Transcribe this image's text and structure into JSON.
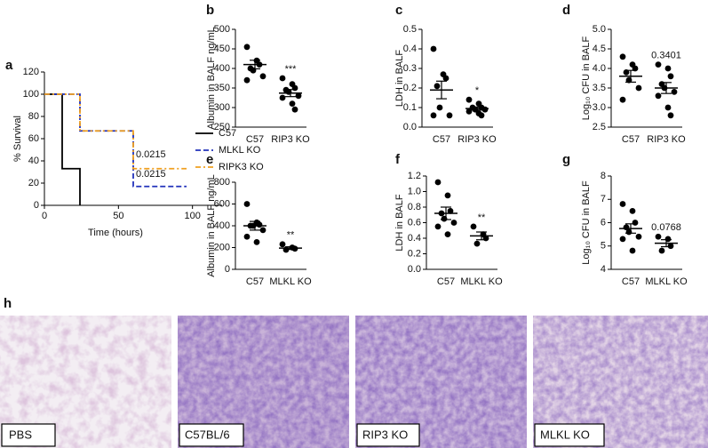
{
  "chart_data": [
    {
      "type": "survival",
      "label": "a",
      "xlabel": "Time (hours)",
      "ylabel": "% Survival",
      "xlim": [
        0,
        120
      ],
      "xticks": [
        0,
        50,
        100
      ],
      "ylim": [
        0,
        120
      ],
      "yticks": [
        0,
        20,
        40,
        60,
        80,
        100,
        120
      ],
      "legend": "right",
      "annotations": [
        "0.0215",
        "0.0215"
      ],
      "series": [
        {
          "name": "C57",
          "color": "#000000",
          "dash": "solid",
          "x": [
            0,
            12,
            12,
            24,
            24
          ],
          "y": [
            100,
            100,
            33,
            33,
            0
          ]
        },
        {
          "name": "MLKL KO",
          "color": "#2233bb",
          "dash": "dashed",
          "x": [
            0,
            24,
            24,
            60,
            60,
            96
          ],
          "y": [
            100,
            100,
            67,
            67,
            17,
            17
          ]
        },
        {
          "name": "RIPK3 KO",
          "color": "#f0a020",
          "dash": "dashdot",
          "x": [
            0,
            24,
            24,
            60,
            60,
            96
          ],
          "y": [
            100,
            100,
            67,
            67,
            33,
            33
          ]
        }
      ]
    },
    {
      "type": "dot",
      "label": "b",
      "ylabel": "Albumin in BALF ng/mL",
      "ylim": [
        250,
        500
      ],
      "yticks": [
        250,
        300,
        350,
        400,
        450,
        500
      ],
      "categories": [
        "C57",
        "RIP3 KO"
      ],
      "annotation": "***",
      "points": [
        [
          455,
          420,
          410,
          400,
          395,
          380,
          370
        ],
        [
          375,
          360,
          350,
          345,
          340,
          330,
          325,
          310,
          295
        ]
      ],
      "means": [
        410,
        337
      ],
      "sems": [
        11,
        9
      ]
    },
    {
      "type": "dot",
      "label": "c",
      "ylabel": "LDH in BALF",
      "ylim": [
        0,
        0.5
      ],
      "yticks": [
        {
          "value": 0,
          "label": "0.0"
        },
        0.1,
        0.2,
        0.3,
        0.4,
        0.5
      ],
      "categories": [
        "C57",
        "RIP3 KO"
      ],
      "annotation": "*",
      "points": [
        [
          0.4,
          0.27,
          0.25,
          0.21,
          0.1,
          0.06,
          0.06
        ],
        [
          0.14,
          0.12,
          0.1,
          0.1,
          0.09,
          0.09,
          0.08,
          0.07,
          0.06
        ]
      ],
      "means": [
        0.19,
        0.095
      ],
      "sems": [
        0.045,
        0.008
      ]
    },
    {
      "type": "dot",
      "label": "d",
      "ylabel": "Log₁₀ CFU in BALF",
      "ylim": [
        2.5,
        5
      ],
      "yticks": [
        2.5,
        {
          "value": 3,
          "label": "3.0"
        },
        3.5,
        {
          "value": 4,
          "label": "4.0"
        },
        4.5,
        {
          "value": 5,
          "label": "5.0"
        }
      ],
      "categories": [
        "C57",
        "RIP3 KO"
      ],
      "annotation": "0.3401",
      "points": [
        [
          4.3,
          4.1,
          4.0,
          3.9,
          3.7,
          3.5,
          3.2
        ],
        [
          4.1,
          4.0,
          3.8,
          3.6,
          3.5,
          3.4,
          3.3,
          3.0,
          2.8
        ]
      ],
      "means": [
        3.8,
        3.5
      ],
      "sems": [
        0.15,
        0.14
      ]
    },
    {
      "type": "dot",
      "label": "e",
      "ylabel": "Albumin in BALF ng/mL",
      "ylim": [
        0,
        800
      ],
      "yticks": [
        0,
        200,
        400,
        600,
        800
      ],
      "categories": [
        "C57",
        "MLKL KO"
      ],
      "annotation": "**",
      "points": [
        [
          600,
          430,
          410,
          400,
          400,
          360,
          300,
          250
        ],
        [
          230,
          200,
          190,
          180
        ]
      ],
      "means": [
        400,
        195
      ],
      "sems": [
        40,
        12
      ]
    },
    {
      "type": "dot",
      "label": "f",
      "ylabel": "LDH in BALF",
      "ylim": [
        0,
        1.2
      ],
      "yticks": [
        {
          "value": 0,
          "label": "0.0"
        },
        0.2,
        0.4,
        0.6,
        0.8,
        {
          "value": 1,
          "label": "1.0"
        },
        1.2
      ],
      "categories": [
        "C57",
        "MLKL KO"
      ],
      "annotation": "**",
      "points": [
        [
          1.12,
          0.95,
          0.75,
          0.72,
          0.65,
          0.6,
          0.55,
          0.45
        ],
        [
          0.55,
          0.45,
          0.4,
          0.33
        ]
      ],
      "means": [
        0.72,
        0.43
      ],
      "sems": [
        0.08,
        0.05
      ]
    },
    {
      "type": "dot",
      "label": "g",
      "ylabel": "Log₁₀ CFU in BALF",
      "ylim": [
        4,
        8
      ],
      "yticks": [
        4,
        5,
        6,
        7,
        8
      ],
      "categories": [
        "C57",
        "MLKL KO"
      ],
      "annotation": "0.0768",
      "points": [
        [
          6.8,
          6.5,
          6.0,
          5.8,
          5.6,
          5.4,
          5.3,
          4.8
        ],
        [
          5.4,
          5.3,
          5.0,
          4.8
        ]
      ],
      "means": [
        5.75,
        5.12
      ],
      "sems": [
        0.2,
        0.15
      ]
    }
  ],
  "histology": {
    "label": "h",
    "panels": [
      "PBS",
      "C57BL/6",
      "RIP3 KO",
      "MLKL KO"
    ]
  }
}
